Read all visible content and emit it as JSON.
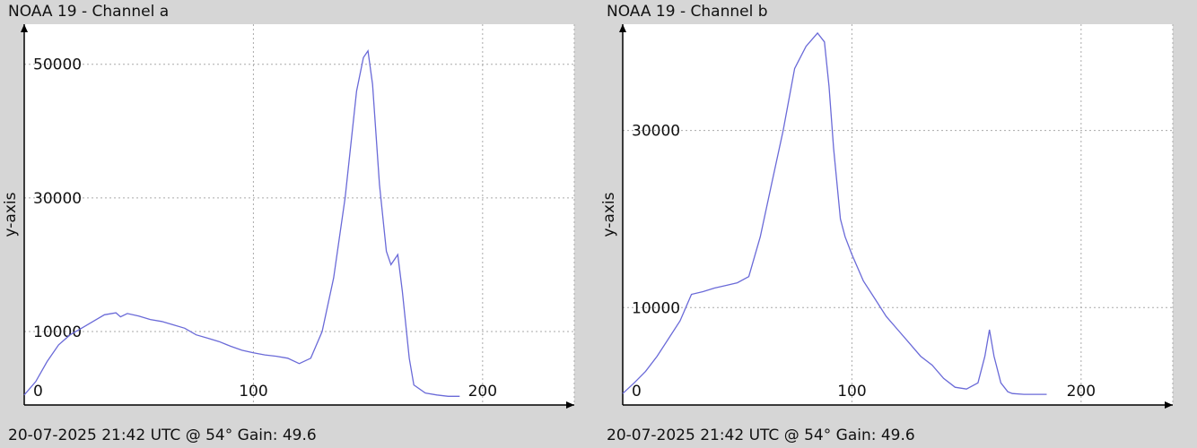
{
  "panels": [
    {
      "title": "NOAA 19 - Channel a",
      "footer": "20-07-2025 21:42 UTC @ 54° Gain: 49.6"
    },
    {
      "title": "NOAA 19 - Channel b",
      "footer": "20-07-2025 21:42 UTC @ 54° Gain: 49.6"
    }
  ],
  "colors": {
    "line": "#6a6ad8",
    "grid": "#aaaaaa",
    "plot_bg": "#ffffff",
    "axis": "#000000"
  },
  "chart_data": [
    {
      "type": "line",
      "title": "NOAA 19 - Channel a",
      "xlabel": "",
      "ylabel": "y-axis",
      "xlim": [
        0,
        240
      ],
      "ylim": [
        -1000,
        56000
      ],
      "x_ticks": [
        0,
        100,
        200
      ],
      "x_tick_labels": [
        "0",
        "100",
        "200"
      ],
      "y_ticks": [
        10000,
        30000,
        50000
      ],
      "y_tick_labels": [
        "10000",
        "30000",
        "50000"
      ],
      "grid": true,
      "series": [
        {
          "x": [
            0,
            5,
            10,
            15,
            20,
            25,
            30,
            35,
            40,
            42,
            45,
            50,
            55,
            60,
            65,
            70,
            75,
            80,
            85,
            90,
            95,
            100,
            105,
            110,
            115,
            120,
            125,
            130,
            135,
            140,
            145,
            148,
            150,
            152,
            155,
            158,
            160,
            163,
            165,
            168,
            170,
            175,
            180,
            185,
            190
          ],
          "y": [
            500,
            2500,
            5500,
            8000,
            9500,
            10500,
            11500,
            12500,
            12800,
            12200,
            12700,
            12300,
            11800,
            11500,
            11000,
            10500,
            9500,
            9000,
            8500,
            7800,
            7200,
            6800,
            6500,
            6300,
            6000,
            5200,
            6000,
            10000,
            18000,
            30000,
            46000,
            51000,
            52000,
            47000,
            32000,
            22000,
            20000,
            21500,
            16000,
            6000,
            2000,
            800,
            500,
            300,
            300
          ]
        }
      ]
    },
    {
      "type": "line",
      "title": "NOAA 19 - Channel b",
      "xlabel": "",
      "ylabel": "y-axis",
      "xlim": [
        0,
        240
      ],
      "ylim": [
        -1000,
        42000
      ],
      "x_ticks": [
        0,
        100,
        200
      ],
      "x_tick_labels": [
        "0",
        "100",
        "200"
      ],
      "y_ticks": [
        10000,
        30000
      ],
      "y_tick_labels": [
        "10000",
        "30000"
      ],
      "grid": true,
      "series": [
        {
          "x": [
            0,
            5,
            10,
            15,
            20,
            25,
            30,
            35,
            40,
            45,
            50,
            55,
            60,
            65,
            70,
            75,
            80,
            85,
            88,
            90,
            92,
            95,
            97,
            100,
            105,
            110,
            115,
            120,
            125,
            130,
            135,
            140,
            145,
            150,
            155,
            158,
            160,
            162,
            165,
            168,
            170,
            175,
            180,
            185
          ],
          "y": [
            300,
            1500,
            2800,
            4500,
            6500,
            8500,
            11500,
            11800,
            12200,
            12500,
            12800,
            13500,
            18000,
            24000,
            30000,
            37000,
            39500,
            41000,
            40000,
            35000,
            28000,
            20000,
            18000,
            16000,
            13000,
            11000,
            9000,
            7500,
            6000,
            4500,
            3500,
            2000,
            1000,
            800,
            1500,
            4500,
            7500,
            4500,
            1500,
            500,
            300,
            200,
            200,
            200
          ]
        }
      ]
    }
  ]
}
